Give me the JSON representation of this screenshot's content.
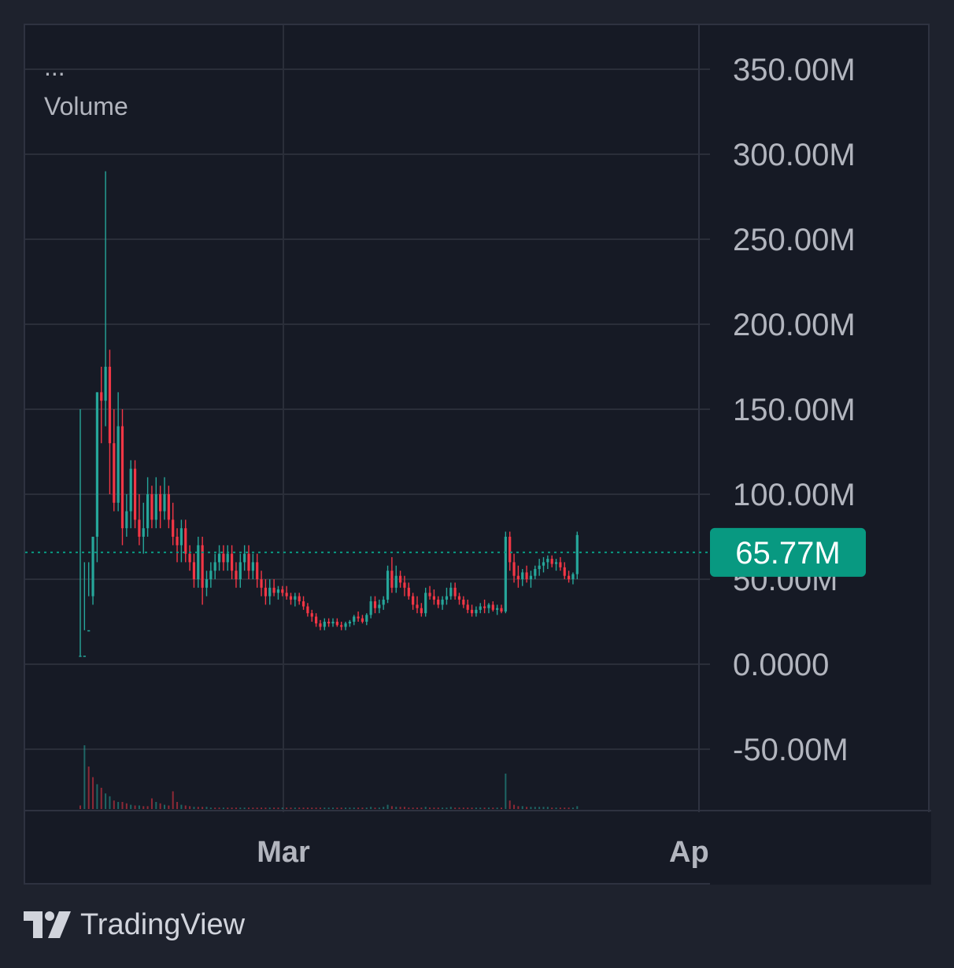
{
  "legend": {
    "menu": "...",
    "indicator": "Volume"
  },
  "price_label": {
    "value": "65.77M",
    "color": "#089981"
  },
  "brand": {
    "name": "TradingView"
  },
  "colors": {
    "up": "#26a69a",
    "down": "#f23645",
    "grid": "#2a2e39",
    "background": "#161a25",
    "text": "#b2b5be"
  },
  "chart_data": {
    "type": "candlestick",
    "y_ticks": [
      "-50.00M",
      "0.0000",
      "50.00M",
      "100.00M",
      "150.00M",
      "200.00M",
      "250.00M",
      "300.00M",
      "350.00M"
    ],
    "x_ticks": [
      "Mar",
      "Ap"
    ],
    "ylim": [
      -88000000,
      360000000
    ],
    "last_value": 65770000,
    "grid": true,
    "candles": [
      [
        5,
        150,
        5,
        5
      ],
      [
        5,
        60,
        20,
        5
      ],
      [
        20,
        60,
        40,
        20
      ],
      [
        40,
        75,
        35,
        75
      ],
      [
        75,
        160,
        60,
        160
      ],
      [
        160,
        175,
        130,
        155
      ],
      [
        155,
        290,
        140,
        175
      ],
      [
        175,
        185,
        100,
        130
      ],
      [
        130,
        150,
        90,
        95
      ],
      [
        95,
        160,
        90,
        140
      ],
      [
        140,
        150,
        70,
        80
      ],
      [
        80,
        100,
        75,
        90
      ],
      [
        90,
        120,
        80,
        115
      ],
      [
        115,
        120,
        80,
        85
      ],
      [
        85,
        100,
        70,
        75
      ],
      [
        75,
        95,
        65,
        80
      ],
      [
        80,
        110,
        75,
        100
      ],
      [
        100,
        105,
        80,
        85
      ],
      [
        85,
        110,
        80,
        100
      ],
      [
        100,
        105,
        80,
        90
      ],
      [
        90,
        110,
        85,
        100
      ],
      [
        100,
        105,
        80,
        85
      ],
      [
        85,
        95,
        70,
        75
      ],
      [
        75,
        80,
        60,
        70
      ],
      [
        70,
        85,
        60,
        80
      ],
      [
        80,
        85,
        60,
        65
      ],
      [
        65,
        70,
        55,
        60
      ],
      [
        60,
        65,
        45,
        50
      ],
      [
        50,
        75,
        45,
        70
      ],
      [
        70,
        75,
        35,
        45
      ],
      [
        45,
        55,
        40,
        50
      ],
      [
        50,
        60,
        45,
        55
      ],
      [
        55,
        65,
        50,
        60
      ],
      [
        60,
        70,
        55,
        65
      ],
      [
        65,
        70,
        55,
        60
      ],
      [
        60,
        70,
        55,
        65
      ],
      [
        65,
        70,
        50,
        55
      ],
      [
        55,
        60,
        45,
        50
      ],
      [
        50,
        65,
        45,
        60
      ],
      [
        60,
        70,
        55,
        65
      ],
      [
        65,
        70,
        50,
        55
      ],
      [
        55,
        65,
        50,
        60
      ],
      [
        60,
        65,
        45,
        50
      ],
      [
        50,
        55,
        40,
        45
      ],
      [
        45,
        50,
        35,
        40
      ],
      [
        40,
        50,
        35,
        45
      ],
      [
        45,
        50,
        40,
        42
      ],
      [
        42,
        46,
        38,
        44
      ],
      [
        44,
        46,
        40,
        42
      ],
      [
        42,
        46,
        38,
        40
      ],
      [
        40,
        42,
        35,
        38
      ],
      [
        38,
        42,
        34,
        40
      ],
      [
        40,
        42,
        35,
        37
      ],
      [
        37,
        40,
        32,
        34
      ],
      [
        34,
        36,
        28,
        30
      ],
      [
        30,
        32,
        25,
        28
      ],
      [
        28,
        30,
        22,
        24
      ],
      [
        24,
        26,
        20,
        22
      ],
      [
        22,
        27,
        20,
        25
      ],
      [
        25,
        27,
        22,
        24
      ],
      [
        24,
        27,
        22,
        25
      ],
      [
        25,
        27,
        22,
        23
      ],
      [
        23,
        25,
        20,
        22
      ],
      [
        22,
        25,
        20,
        24
      ],
      [
        24,
        26,
        22,
        25
      ],
      [
        25,
        29,
        23,
        28
      ],
      [
        28,
        31,
        25,
        27
      ],
      [
        27,
        29,
        24,
        25
      ],
      [
        25,
        30,
        23,
        29
      ],
      [
        29,
        40,
        27,
        37
      ],
      [
        37,
        40,
        30,
        33
      ],
      [
        33,
        38,
        30,
        35
      ],
      [
        35,
        40,
        32,
        38
      ],
      [
        38,
        58,
        36,
        55
      ],
      [
        55,
        63,
        42,
        45
      ],
      [
        45,
        58,
        42,
        52
      ],
      [
        52,
        55,
        45,
        48
      ],
      [
        48,
        52,
        40,
        45
      ],
      [
        45,
        48,
        38,
        40
      ],
      [
        40,
        42,
        32,
        35
      ],
      [
        35,
        40,
        30,
        33
      ],
      [
        33,
        36,
        28,
        30
      ],
      [
        30,
        45,
        28,
        42
      ],
      [
        42,
        46,
        38,
        40
      ],
      [
        40,
        44,
        35,
        38
      ],
      [
        38,
        40,
        33,
        35
      ],
      [
        35,
        40,
        32,
        38
      ],
      [
        38,
        45,
        35,
        40
      ],
      [
        40,
        48,
        38,
        45
      ],
      [
        45,
        48,
        38,
        40
      ],
      [
        40,
        42,
        35,
        38
      ],
      [
        38,
        40,
        33,
        35
      ],
      [
        35,
        38,
        30,
        32
      ],
      [
        32,
        35,
        28,
        30
      ],
      [
        30,
        34,
        28,
        32
      ],
      [
        32,
        36,
        30,
        34
      ],
      [
        34,
        38,
        30,
        33
      ],
      [
        33,
        36,
        30,
        35
      ],
      [
        35,
        37,
        31,
        32
      ],
      [
        32,
        35,
        29,
        33
      ],
      [
        33,
        35,
        30,
        31
      ],
      [
        31,
        78,
        30,
        75
      ],
      [
        75,
        78,
        55,
        60
      ],
      [
        60,
        65,
        48,
        52
      ],
      [
        52,
        58,
        45,
        50
      ],
      [
        50,
        56,
        46,
        54
      ],
      [
        54,
        58,
        48,
        50
      ],
      [
        50,
        55,
        45,
        52
      ],
      [
        52,
        58,
        50,
        56
      ],
      [
        56,
        62,
        52,
        58
      ],
      [
        58,
        63,
        54,
        60
      ],
      [
        60,
        64,
        56,
        62
      ],
      [
        62,
        64,
        57,
        59
      ],
      [
        59,
        62,
        55,
        60
      ],
      [
        60,
        63,
        55,
        57
      ],
      [
        57,
        60,
        50,
        52
      ],
      [
        52,
        55,
        48,
        50
      ],
      [
        50,
        54,
        47,
        53
      ],
      [
        53,
        78,
        50,
        76
      ]
    ],
    "volumes": [
      [
        5,
        0
      ],
      [
        90,
        1
      ],
      [
        60,
        0
      ],
      [
        45,
        0
      ],
      [
        35,
        1
      ],
      [
        30,
        0
      ],
      [
        22,
        1
      ],
      [
        18,
        1
      ],
      [
        12,
        0
      ],
      [
        10,
        1
      ],
      [
        10,
        0
      ],
      [
        8,
        0
      ],
      [
        6,
        1
      ],
      [
        5,
        0
      ],
      [
        5,
        1
      ],
      [
        4,
        0
      ],
      [
        4,
        0
      ],
      [
        15,
        0
      ],
      [
        10,
        1
      ],
      [
        8,
        0
      ],
      [
        6,
        1
      ],
      [
        5,
        0
      ],
      [
        25,
        0
      ],
      [
        10,
        0
      ],
      [
        6,
        1
      ],
      [
        5,
        0
      ],
      [
        4,
        0
      ],
      [
        3,
        1
      ],
      [
        3,
        0
      ],
      [
        3,
        0
      ],
      [
        3,
        1
      ],
      [
        2,
        1
      ],
      [
        2,
        0
      ],
      [
        2,
        0
      ],
      [
        2,
        1
      ],
      [
        2,
        0
      ],
      [
        2,
        0
      ],
      [
        2,
        0
      ],
      [
        2,
        1
      ],
      [
        2,
        1
      ],
      [
        2,
        0
      ],
      [
        2,
        0
      ],
      [
        2,
        0
      ],
      [
        2,
        0
      ],
      [
        2,
        0
      ],
      [
        2,
        1
      ],
      [
        2,
        0
      ],
      [
        2,
        0
      ],
      [
        2,
        1
      ],
      [
        2,
        0
      ],
      [
        2,
        0
      ],
      [
        2,
        1
      ],
      [
        2,
        0
      ],
      [
        2,
        0
      ],
      [
        2,
        0
      ],
      [
        2,
        0
      ],
      [
        2,
        0
      ],
      [
        2,
        0
      ],
      [
        2,
        1
      ],
      [
        2,
        1
      ],
      [
        2,
        1
      ],
      [
        2,
        0
      ],
      [
        2,
        0
      ],
      [
        2,
        1
      ],
      [
        2,
        1
      ],
      [
        2,
        1
      ],
      [
        2,
        0
      ],
      [
        2,
        0
      ],
      [
        2,
        1
      ],
      [
        3,
        1
      ],
      [
        2,
        0
      ],
      [
        2,
        1
      ],
      [
        3,
        1
      ],
      [
        6,
        1
      ],
      [
        4,
        0
      ],
      [
        3,
        1
      ],
      [
        3,
        0
      ],
      [
        3,
        0
      ],
      [
        2,
        0
      ],
      [
        2,
        0
      ],
      [
        2,
        0
      ],
      [
        2,
        0
      ],
      [
        3,
        1
      ],
      [
        2,
        0
      ],
      [
        2,
        0
      ],
      [
        2,
        0
      ],
      [
        2,
        1
      ],
      [
        2,
        1
      ],
      [
        3,
        1
      ],
      [
        2,
        0
      ],
      [
        2,
        0
      ],
      [
        2,
        0
      ],
      [
        2,
        0
      ],
      [
        2,
        0
      ],
      [
        2,
        1
      ],
      [
        2,
        1
      ],
      [
        2,
        0
      ],
      [
        2,
        1
      ],
      [
        2,
        0
      ],
      [
        2,
        1
      ],
      [
        2,
        0
      ],
      [
        50,
        1
      ],
      [
        12,
        0
      ],
      [
        6,
        0
      ],
      [
        4,
        0
      ],
      [
        4,
        1
      ],
      [
        3,
        0
      ],
      [
        3,
        1
      ],
      [
        3,
        1
      ],
      [
        3,
        1
      ],
      [
        3,
        1
      ],
      [
        3,
        1
      ],
      [
        2,
        0
      ],
      [
        2,
        1
      ],
      [
        2,
        0
      ],
      [
        2,
        0
      ],
      [
        2,
        0
      ],
      [
        2,
        1
      ],
      [
        4,
        1
      ]
    ]
  }
}
